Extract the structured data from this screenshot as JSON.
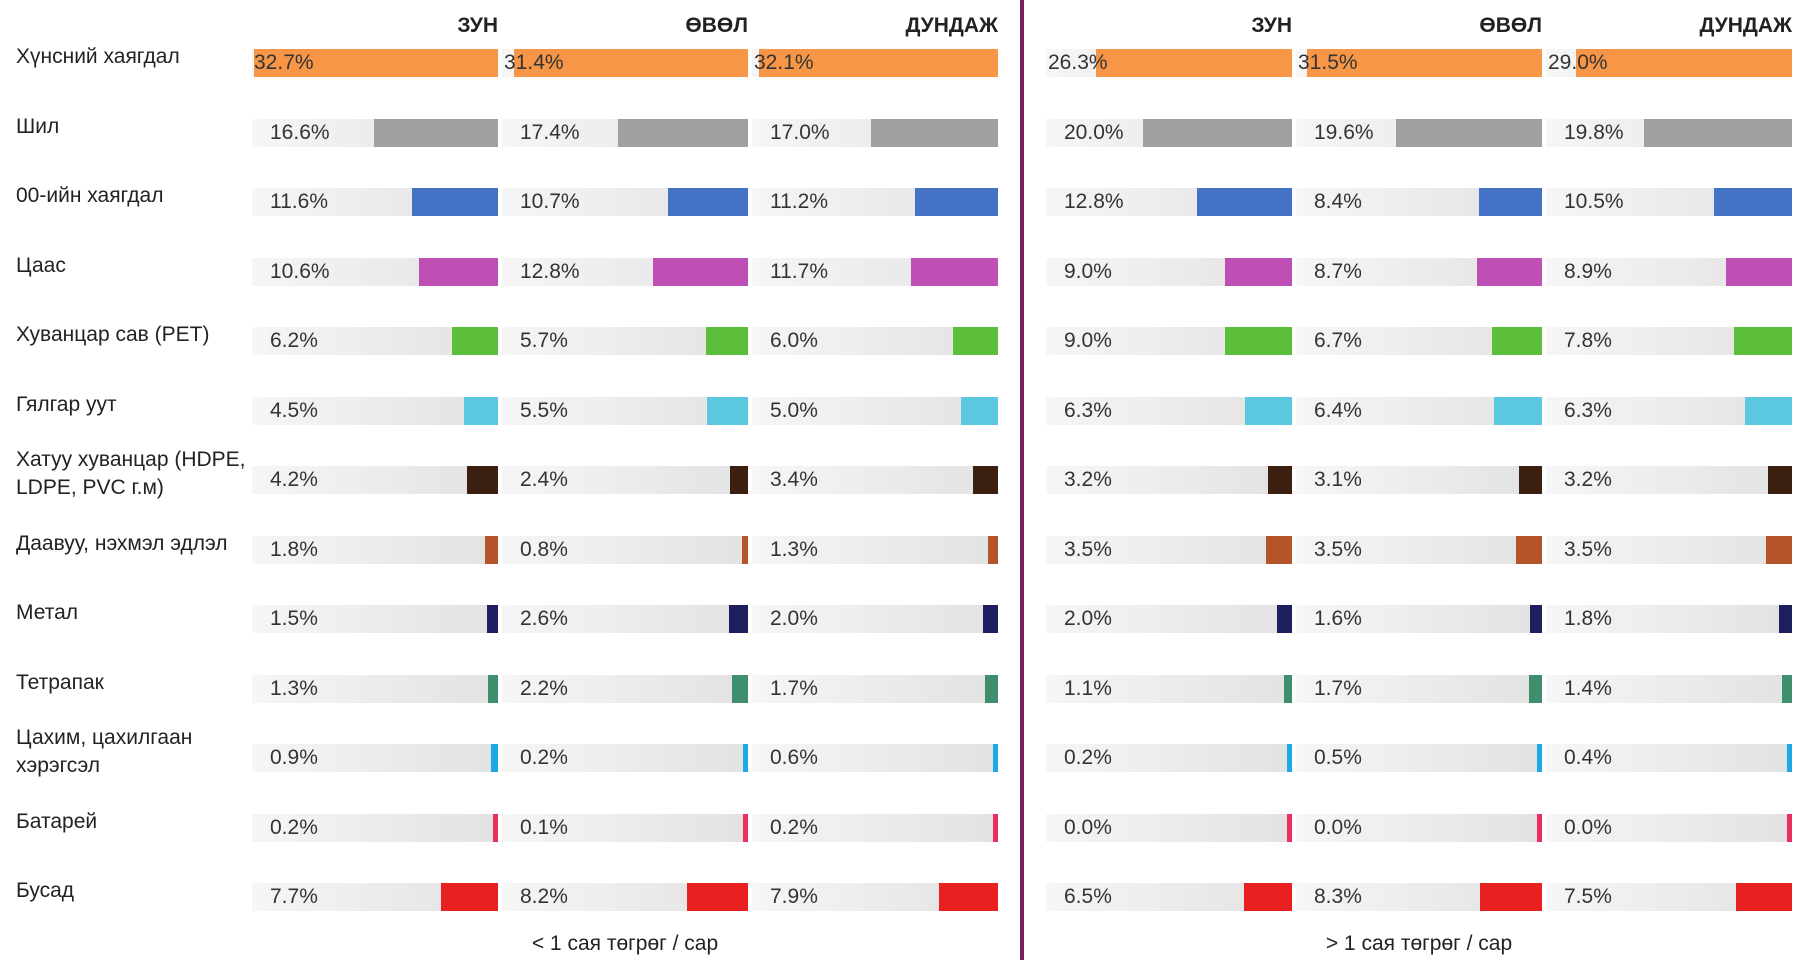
{
  "chart_data": {
    "type": "bar",
    "categories": [
      "Хүнсний хаягдал",
      "Шил",
      "00-ийн хаягдал",
      "Цаас",
      "Хуванцар сав (PET)",
      "Гялгар уут",
      "Хатуу хуванцар (HDPE, LDPE, PVC г.м)",
      "Даавуу, нэхмэл эдлэл",
      "Метал",
      "Тетрапак",
      "Цахим, цахилгаан хэрэгсэл",
      "Батарей",
      "Бусад"
    ],
    "colors": [
      "#f79646",
      "#a0a0a0",
      "#4472c4",
      "#c04fb5",
      "#5cbf3a",
      "#5bc8e0",
      "#3b1f10",
      "#b5532a",
      "#1f1f5f",
      "#3f8f6f",
      "#1ea8e8",
      "#e8305a",
      "#e82020"
    ],
    "xlim": [
      0,
      33
    ],
    "panels": [
      {
        "label": "< 1 сая төгрөг / сар",
        "series": [
          {
            "name": "ЗУН",
            "values": [
              32.7,
              16.6,
              11.6,
              10.6,
              6.2,
              4.5,
              4.2,
              1.8,
              1.5,
              1.3,
              0.9,
              0.2,
              7.7
            ],
            "value_labels": [
              "32.7%",
              "16.6%",
              "11.6%",
              "10.6%",
              "6.2%",
              "4.5%",
              "4.2%",
              "1.8%",
              "1.5%",
              "1.3%",
              "0.9%",
              "0.2%",
              "7.7%"
            ]
          },
          {
            "name": "ӨВӨЛ",
            "values": [
              31.4,
              17.4,
              10.7,
              12.8,
              5.7,
              5.5,
              2.4,
              0.8,
              2.6,
              2.2,
              0.2,
              0.1,
              8.2
            ],
            "value_labels": [
              "31.4%",
              "17.4%",
              "10.7%",
              "12.8%",
              "5.7%",
              "5.5%",
              "2.4%",
              "0.8%",
              "2.6%",
              "2.2%",
              "0.2%",
              "0.1%",
              "8.2%"
            ]
          },
          {
            "name": "ДУНДАЖ",
            "values": [
              32.1,
              17.0,
              11.2,
              11.7,
              6.0,
              5.0,
              3.4,
              1.3,
              2.0,
              1.7,
              0.6,
              0.2,
              7.9
            ],
            "value_labels": [
              "32.1%",
              "17.0%",
              "11.2%",
              "11.7%",
              "6.0%",
              "5.0%",
              "3.4%",
              "1.3%",
              "2.0%",
              "1.7%",
              "0.6%",
              "0.2%",
              "7.9%"
            ]
          }
        ]
      },
      {
        "label": "> 1 сая төгрөг / сар",
        "series": [
          {
            "name": "ЗУН",
            "values": [
              26.3,
              20.0,
              12.8,
              9.0,
              9.0,
              6.3,
              3.2,
              3.5,
              2.0,
              1.1,
              0.2,
              0.0,
              6.5
            ],
            "value_labels": [
              "26.3%",
              "20.0%",
              "12.8%",
              "9.0%",
              "9.0%",
              "6.3%",
              "3.2%",
              "3.5%",
              "2.0%",
              "1.1%",
              "0.2%",
              "0.0%",
              "6.5%"
            ]
          },
          {
            "name": "ӨВӨЛ",
            "values": [
              31.5,
              19.6,
              8.4,
              8.7,
              6.7,
              6.4,
              3.1,
              3.5,
              1.6,
              1.7,
              0.5,
              0.0,
              8.3
            ],
            "value_labels": [
              "31.5%",
              "19.6%",
              "8.4%",
              "8.7%",
              "6.7%",
              "6.4%",
              "3.1%",
              "3.5%",
              "1.6%",
              "1.7%",
              "0.5%",
              "0.0%",
              "8.3%"
            ]
          },
          {
            "name": "ДУНДАЖ",
            "values": [
              29.0,
              19.8,
              10.5,
              8.9,
              7.8,
              6.3,
              3.2,
              3.5,
              1.8,
              1.4,
              0.4,
              0.0,
              7.5
            ],
            "value_labels": [
              "29.0%",
              "19.8%",
              "10.5%",
              "8.9%",
              "7.8%",
              "6.3%",
              "3.2%",
              "3.5%",
              "1.8%",
              "1.4%",
              "0.4%",
              "0.0%",
              "7.5%"
            ]
          }
        ]
      }
    ]
  }
}
